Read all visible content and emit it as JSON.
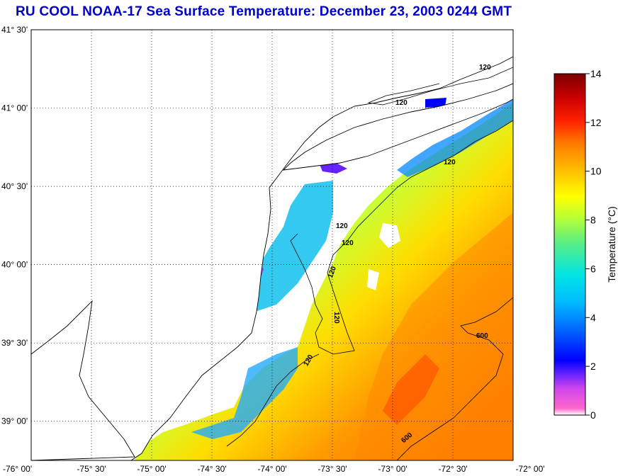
{
  "title": "RU COOL  NOAA-17  Sea Surface Temperature:  December 23, 2003 0244 GMT",
  "map": {
    "lon_range": [
      -76.0,
      -72.0
    ],
    "lat_range": [
      38.75,
      41.5
    ],
    "lon_ticks": [
      {
        "value": -76.0,
        "label": "-76° 00'"
      },
      {
        "value": -75.5,
        "label": "-75° 30'"
      },
      {
        "value": -75.0,
        "label": "-75° 00'"
      },
      {
        "value": -74.5,
        "label": "-74° 30'"
      },
      {
        "value": -74.0,
        "label": "-74° 00'"
      },
      {
        "value": -73.5,
        "label": "-73° 30'"
      },
      {
        "value": -73.0,
        "label": "-73° 00'"
      },
      {
        "value": -72.5,
        "label": "-72° 30'"
      },
      {
        "value": -72.0,
        "label": "-72° 00'"
      }
    ],
    "lat_ticks": [
      {
        "value": 41.5,
        "label": "41° 30'"
      },
      {
        "value": 41.0,
        "label": "41° 00'"
      },
      {
        "value": 40.5,
        "label": "40° 30'"
      },
      {
        "value": 40.0,
        "label": "40° 00'"
      },
      {
        "value": 39.5,
        "label": "39° 30'"
      },
      {
        "value": 39.0,
        "label": "39° 00'"
      }
    ],
    "grid": "dotted",
    "contour_labels": [
      "120",
      "120",
      "120",
      "120",
      "120",
      "120",
      "120",
      "120",
      "600",
      "600"
    ]
  },
  "colorbar": {
    "label": "Temperature (°C)",
    "min": 0,
    "max": 14,
    "ticks": [
      "0",
      "2",
      "4",
      "6",
      "8",
      "10",
      "12",
      "14"
    ],
    "colors": [
      "#ff66cc",
      "#9933ff",
      "#0000ff",
      "#0099ff",
      "#00e5e5",
      "#66ff66",
      "#ffff00",
      "#ffa500",
      "#ff3300",
      "#cc0000",
      "#800000"
    ]
  }
}
